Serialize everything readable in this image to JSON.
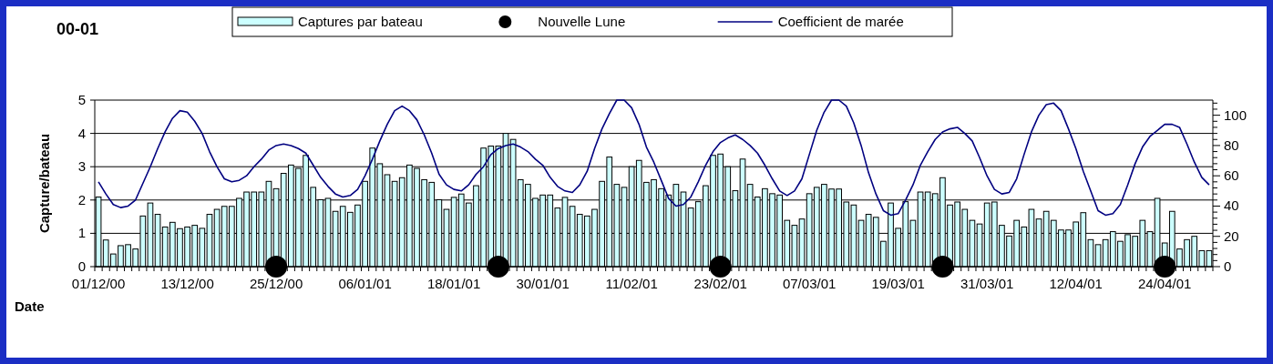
{
  "chart_data": {
    "type": "bar",
    "title": "00-01",
    "xlabel": "Date",
    "ylabel": "Capture/bateau",
    "categories": [
      "01/12/00",
      null,
      null,
      null,
      null,
      null,
      null,
      null,
      null,
      null,
      null,
      null,
      "13/12/00",
      null,
      null,
      null,
      null,
      null,
      null,
      null,
      null,
      null,
      null,
      null,
      "25/12/00",
      null,
      null,
      null,
      null,
      null,
      null,
      null,
      null,
      null,
      null,
      null,
      "06/01/01",
      null,
      null,
      null,
      null,
      null,
      null,
      null,
      null,
      null,
      null,
      null,
      "18/01/01",
      null,
      null,
      null,
      null,
      null,
      null,
      null,
      null,
      null,
      null,
      null,
      "30/01/01",
      null,
      null,
      null,
      null,
      null,
      null,
      null,
      null,
      null,
      null,
      null,
      "11/02/01",
      null,
      null,
      null,
      null,
      null,
      null,
      null,
      null,
      null,
      null,
      null,
      "23/02/01",
      null,
      null,
      null,
      null,
      null,
      null,
      null,
      null,
      null,
      null,
      null,
      "07/03/01",
      null,
      null,
      null,
      null,
      null,
      null,
      null,
      null,
      null,
      null,
      null,
      "19/03/01",
      null,
      null,
      null,
      null,
      null,
      null,
      null,
      null,
      null,
      null,
      null,
      "31/03/01",
      null,
      null,
      null,
      null,
      null,
      null,
      null,
      null,
      null,
      null,
      null,
      "12/04/01",
      null,
      null,
      null,
      null,
      null,
      null,
      null,
      null,
      null,
      null,
      null,
      "24/04/01",
      null,
      null,
      null,
      null,
      null,
      null
    ],
    "series": [
      {
        "name": "Captures par bateau",
        "color": "#ccffff",
        "values": [
          2.09,
          0.8,
          0.38,
          0.63,
          0.66,
          0.53,
          1.52,
          1.91,
          1.57,
          1.19,
          1.33,
          1.14,
          1.19,
          1.24,
          1.15,
          1.57,
          1.72,
          1.81,
          1.81,
          2.05,
          2.24,
          2.24,
          2.24,
          2.56,
          2.34,
          2.8,
          3.05,
          2.95,
          3.34,
          2.38,
          2.01,
          2.05,
          1.66,
          1.81,
          1.63,
          1.85,
          2.56,
          3.56,
          3.09,
          2.76,
          2.56,
          2.67,
          3.05,
          2.95,
          2.61,
          2.53,
          2.01,
          1.72,
          2.08,
          2.18,
          1.91,
          2.43,
          3.56,
          3.62,
          3.62,
          4.0,
          3.82,
          2.61,
          2.47,
          2.05,
          2.15,
          2.15,
          1.76,
          2.08,
          1.81,
          1.57,
          1.52,
          1.72,
          2.56,
          3.29,
          2.47,
          2.38,
          3.0,
          3.19,
          2.53,
          2.61,
          2.34,
          2.15,
          2.47,
          2.24,
          1.76,
          1.95,
          2.43,
          3.34,
          3.38,
          3.0,
          2.28,
          3.23,
          2.47,
          2.09,
          2.34,
          2.19,
          2.15,
          1.39,
          1.24,
          1.43,
          2.19,
          2.38,
          2.47,
          2.33,
          2.33,
          1.94,
          1.85,
          1.39,
          1.57,
          1.48,
          0.76,
          1.91,
          1.15,
          1.95,
          1.39,
          2.24,
          2.24,
          2.19,
          2.67,
          1.85,
          1.94,
          1.72,
          1.39,
          1.28,
          1.91,
          1.94,
          1.24,
          0.92,
          1.39,
          1.19,
          1.72,
          1.43,
          1.66,
          1.39,
          1.1,
          1.1,
          1.34,
          1.62,
          0.81,
          0.66,
          0.81,
          1.05,
          0.76,
          0.96,
          0.91,
          1.39,
          1.05,
          2.05,
          0.71,
          1.66,
          0.53,
          0.81,
          0.91,
          0.48,
          0.48
        ]
      },
      {
        "type": "scatter",
        "name": "Nouvelle Lune",
        "color": "#000000",
        "marker": "circle",
        "values": [
          null,
          null,
          null,
          null,
          null,
          null,
          null,
          null,
          null,
          null,
          null,
          null,
          null,
          null,
          null,
          null,
          null,
          null,
          null,
          null,
          null,
          null,
          null,
          null,
          0,
          null,
          null,
          null,
          null,
          null,
          null,
          null,
          null,
          null,
          null,
          null,
          null,
          null,
          null,
          null,
          null,
          null,
          null,
          null,
          null,
          null,
          null,
          null,
          null,
          null,
          null,
          null,
          null,
          null,
          0,
          null,
          null,
          null,
          null,
          null,
          null,
          null,
          null,
          null,
          null,
          null,
          null,
          null,
          null,
          null,
          null,
          null,
          null,
          null,
          null,
          null,
          null,
          null,
          null,
          null,
          null,
          null,
          null,
          null,
          0,
          null,
          null,
          null,
          null,
          null,
          null,
          null,
          null,
          null,
          null,
          null,
          null,
          null,
          null,
          null,
          null,
          null,
          null,
          null,
          null,
          null,
          null,
          null,
          null,
          null,
          null,
          null,
          null,
          null,
          0,
          null,
          null,
          null,
          null,
          null,
          null,
          null,
          null,
          null,
          null,
          null,
          null,
          null,
          null,
          null,
          null,
          null,
          null,
          null,
          null,
          null,
          null,
          null,
          null,
          null,
          null,
          null,
          null,
          null,
          0,
          null,
          null,
          null,
          null,
          null,
          null
        ]
      },
      {
        "type": "line",
        "name": "Coefficient de marée",
        "color": "#000080",
        "axis": "y2",
        "values": [
          56,
          48,
          41,
          39,
          40,
          44,
          55,
          66,
          78,
          89,
          98,
          103,
          102,
          96,
          88,
          76,
          66,
          58,
          56,
          57,
          60,
          66,
          71,
          77,
          80,
          81,
          80,
          78,
          75,
          67,
          59,
          53,
          48,
          46,
          47,
          51,
          60,
          71,
          83,
          94,
          103,
          106,
          103,
          97,
          87,
          75,
          61,
          54,
          51,
          50,
          54,
          61,
          66,
          74,
          78,
          80,
          81,
          79,
          76,
          71,
          67,
          59,
          53,
          50,
          49,
          54,
          63,
          78,
          91,
          101,
          110,
          110,
          105,
          94,
          79,
          69,
          57,
          45,
          40,
          41,
          46,
          56,
          67,
          76,
          82,
          85,
          87,
          84,
          80,
          75,
          67,
          58,
          50,
          47,
          50,
          58,
          74,
          90,
          102,
          110,
          110,
          106,
          95,
          80,
          62,
          48,
          37,
          34,
          35,
          44,
          54,
          67,
          76,
          84,
          89,
          91,
          92,
          88,
          83,
          72,
          60,
          51,
          48,
          49,
          58,
          74,
          89,
          100,
          107,
          108,
          103,
          91,
          78,
          63,
          50,
          37,
          34,
          35,
          41,
          54,
          68,
          79,
          86,
          90,
          94,
          94,
          92,
          81,
          69,
          59,
          54
        ]
      }
    ],
    "ylim": [
      0,
      5
    ],
    "yticks": [
      0,
      1,
      2,
      3,
      4,
      5
    ],
    "y2lim": [
      0,
      110
    ],
    "y2ticks": [
      0,
      {
        "value": 4,
        "label": null
      },
      {
        "value": 8,
        "label": null
      },
      {
        "value": 12,
        "label": null
      },
      {
        "value": 16,
        "label": null
      },
      20,
      {
        "value": 24,
        "label": null
      },
      {
        "value": 28,
        "label": null
      },
      {
        "value": 32,
        "label": null
      },
      {
        "value": 36,
        "label": null
      },
      40,
      {
        "value": 44,
        "label": null
      },
      {
        "value": 48,
        "label": null
      },
      {
        "value": 52,
        "label": null
      },
      {
        "value": 56,
        "label": null
      },
      60,
      {
        "value": 64,
        "label": null
      },
      {
        "value": 68,
        "label": null
      },
      {
        "value": 72,
        "label": null
      },
      {
        "value": 76,
        "label": null
      },
      80,
      {
        "value": 84,
        "label": null
      },
      {
        "value": 88,
        "label": null
      },
      {
        "value": 92,
        "label": null
      },
      {
        "value": 96,
        "label": null
      },
      100,
      {
        "value": 104,
        "label": null
      },
      {
        "value": 108,
        "label": null
      }
    ],
    "grid": "y",
    "legend": "top"
  }
}
